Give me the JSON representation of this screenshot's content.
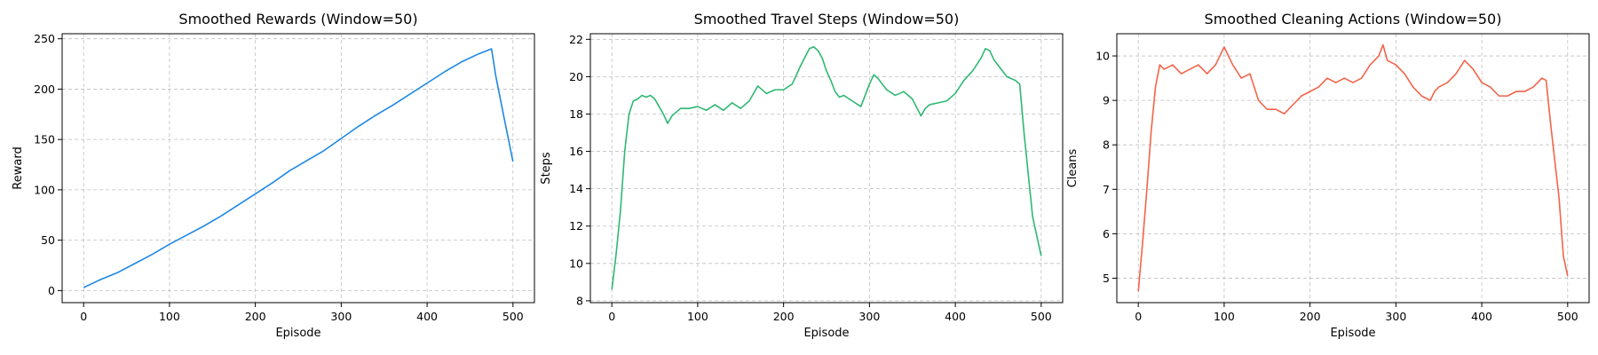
{
  "chart_data": [
    {
      "type": "line",
      "title": "Smoothed Rewards (Window=50)",
      "xlabel": "Episode",
      "ylabel": "Reward",
      "xlim": [
        -25,
        525
      ],
      "ylim": [
        -12,
        255
      ],
      "xticks": [
        0,
        100,
        200,
        300,
        400,
        500
      ],
      "yticks": [
        0,
        50,
        100,
        150,
        200,
        250
      ],
      "grid": true,
      "color": "#1e88e5",
      "series": [
        {
          "x": [
            0,
            10,
            20,
            40,
            60,
            80,
            100,
            120,
            140,
            160,
            180,
            200,
            220,
            240,
            260,
            280,
            300,
            320,
            340,
            360,
            380,
            400,
            420,
            440,
            460,
            475,
            480,
            490,
            500
          ],
          "values": [
            3,
            7,
            11,
            18,
            27,
            36,
            46,
            55,
            64,
            74,
            85,
            96,
            107,
            119,
            129,
            139,
            151,
            163,
            174,
            184,
            195,
            206,
            217,
            227,
            235,
            240,
            213,
            170,
            128
          ]
        }
      ]
    },
    {
      "type": "line",
      "title": "Smoothed Travel Steps (Window=50)",
      "xlabel": "Episode",
      "ylabel": "Steps",
      "xlim": [
        -25,
        525
      ],
      "ylim": [
        7.9,
        22.3
      ],
      "xticks": [
        0,
        100,
        200,
        300,
        400,
        500
      ],
      "yticks": [
        8,
        10,
        12,
        14,
        16,
        18,
        20,
        22
      ],
      "grid": true,
      "color": "#2eb872",
      "series": [
        {
          "x": [
            0,
            5,
            10,
            15,
            20,
            25,
            30,
            35,
            40,
            45,
            50,
            55,
            60,
            65,
            70,
            75,
            80,
            90,
            100,
            110,
            120,
            130,
            140,
            150,
            160,
            170,
            180,
            190,
            200,
            210,
            220,
            230,
            235,
            240,
            245,
            250,
            255,
            260,
            265,
            270,
            280,
            290,
            300,
            305,
            310,
            315,
            320,
            330,
            340,
            350,
            360,
            365,
            370,
            380,
            390,
            400,
            410,
            420,
            430,
            435,
            440,
            445,
            450,
            460,
            470,
            475,
            480,
            490,
            500
          ],
          "values": [
            8.6,
            10.5,
            12.8,
            16.0,
            18.0,
            18.7,
            18.8,
            19.0,
            18.9,
            19.0,
            18.8,
            18.4,
            18.0,
            17.5,
            17.9,
            18.1,
            18.3,
            18.3,
            18.4,
            18.2,
            18.5,
            18.2,
            18.6,
            18.3,
            18.7,
            19.5,
            19.1,
            19.3,
            19.3,
            19.6,
            20.6,
            21.5,
            21.6,
            21.4,
            21.0,
            20.3,
            19.8,
            19.2,
            18.9,
            19.0,
            18.7,
            18.4,
            19.6,
            20.1,
            19.9,
            19.6,
            19.3,
            19.0,
            19.2,
            18.8,
            17.9,
            18.3,
            18.5,
            18.6,
            18.7,
            19.1,
            19.8,
            20.3,
            21.0,
            21.5,
            21.4,
            20.9,
            20.6,
            20.0,
            19.8,
            19.6,
            17.0,
            12.5,
            10.4
          ]
        }
      ]
    },
    {
      "type": "line",
      "title": "Smoothed Cleaning Actions (Window=50)",
      "xlabel": "Episode",
      "ylabel": "Cleans",
      "xlim": [
        -25,
        525
      ],
      "ylim": [
        4.45,
        10.5
      ],
      "xticks": [
        0,
        100,
        200,
        300,
        400,
        500
      ],
      "yticks": [
        5,
        6,
        7,
        8,
        9,
        10
      ],
      "grid": true,
      "color": "#f4634a",
      "series": [
        {
          "x": [
            0,
            5,
            10,
            15,
            20,
            25,
            30,
            40,
            50,
            60,
            70,
            80,
            90,
            95,
            100,
            105,
            110,
            120,
            130,
            135,
            140,
            150,
            160,
            170,
            180,
            190,
            200,
            210,
            220,
            230,
            240,
            250,
            260,
            270,
            280,
            285,
            290,
            300,
            310,
            320,
            330,
            340,
            345,
            350,
            360,
            370,
            380,
            385,
            390,
            400,
            410,
            420,
            430,
            440,
            450,
            460,
            470,
            475,
            480,
            490,
            495,
            500
          ],
          "values": [
            4.7,
            5.8,
            7.0,
            8.3,
            9.3,
            9.8,
            9.7,
            9.8,
            9.6,
            9.7,
            9.8,
            9.6,
            9.8,
            10.0,
            10.2,
            10.0,
            9.8,
            9.5,
            9.6,
            9.3,
            9.0,
            8.8,
            8.8,
            8.7,
            8.9,
            9.1,
            9.2,
            9.3,
            9.5,
            9.4,
            9.5,
            9.4,
            9.5,
            9.8,
            10.0,
            10.25,
            9.9,
            9.8,
            9.6,
            9.3,
            9.1,
            9.0,
            9.2,
            9.3,
            9.4,
            9.6,
            9.9,
            9.8,
            9.7,
            9.4,
            9.3,
            9.1,
            9.1,
            9.2,
            9.2,
            9.3,
            9.5,
            9.45,
            8.5,
            6.8,
            5.5,
            5.05
          ]
        }
      ]
    }
  ]
}
